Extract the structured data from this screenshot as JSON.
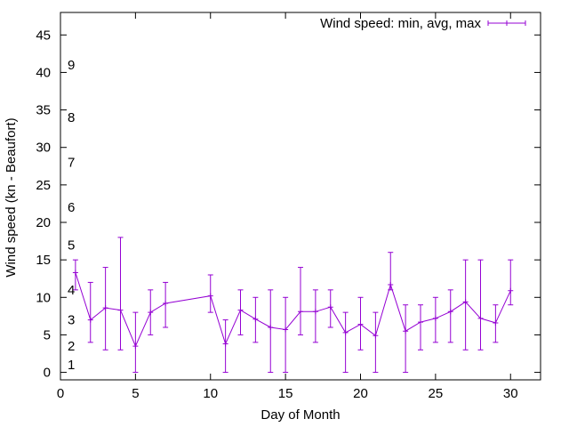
{
  "chart_data": {
    "type": "line",
    "subtype": "errorbars",
    "title": "",
    "xlabel": "Day of Month",
    "ylabel": "Wind speed (kn - Beaufort)",
    "xlim": [
      0,
      32
    ],
    "ylim": [
      -1,
      48
    ],
    "xticks": [
      0,
      5,
      10,
      15,
      20,
      25,
      30
    ],
    "yticks": [
      0,
      5,
      10,
      15,
      20,
      25,
      30,
      35,
      40,
      45
    ],
    "grid": false,
    "legend_position": "top-right",
    "series_color": "#9400d3",
    "series": [
      {
        "name": "Wind speed: min, avg, max",
        "x": [
          1,
          2,
          3,
          4,
          5,
          6,
          7,
          10,
          11,
          12,
          13,
          14,
          15,
          16,
          17,
          18,
          19,
          20,
          21,
          22,
          23,
          24,
          25,
          26,
          27,
          28,
          29,
          30
        ],
        "avg": [
          13.3,
          7,
          8.6,
          8.3,
          3.5,
          8,
          9.2,
          10.2,
          3.8,
          8.3,
          7.1,
          6,
          5.7,
          8.1,
          8.1,
          8.7,
          5.3,
          6.4,
          4.9,
          11.7,
          5.5,
          6.7,
          7.2,
          8.1,
          9.4,
          7.2,
          6.6,
          10.9
        ],
        "min": [
          11,
          4,
          3,
          3,
          0,
          5,
          6,
          8,
          0,
          5,
          4,
          0,
          0,
          5,
          4,
          6,
          0,
          3,
          0,
          11,
          0,
          3,
          4,
          4,
          3,
          3,
          4,
          9
        ],
        "max": [
          15,
          12,
          14,
          18,
          8,
          11,
          12,
          13,
          7,
          11,
          10,
          11,
          10,
          14,
          11,
          11,
          8,
          10,
          8,
          16,
          9,
          9,
          10,
          11,
          15,
          15,
          9,
          15
        ]
      }
    ],
    "beaufort_labels": [
      {
        "value": 1,
        "label": "1"
      },
      {
        "value": 3.5,
        "label": "2"
      },
      {
        "value": 7,
        "label": "3"
      },
      {
        "value": 11,
        "label": "4"
      },
      {
        "value": 17,
        "label": "5"
      },
      {
        "value": 22,
        "label": "6"
      },
      {
        "value": 28,
        "label": "7"
      },
      {
        "value": 34,
        "label": "8"
      },
      {
        "value": 41,
        "label": "9"
      }
    ]
  }
}
